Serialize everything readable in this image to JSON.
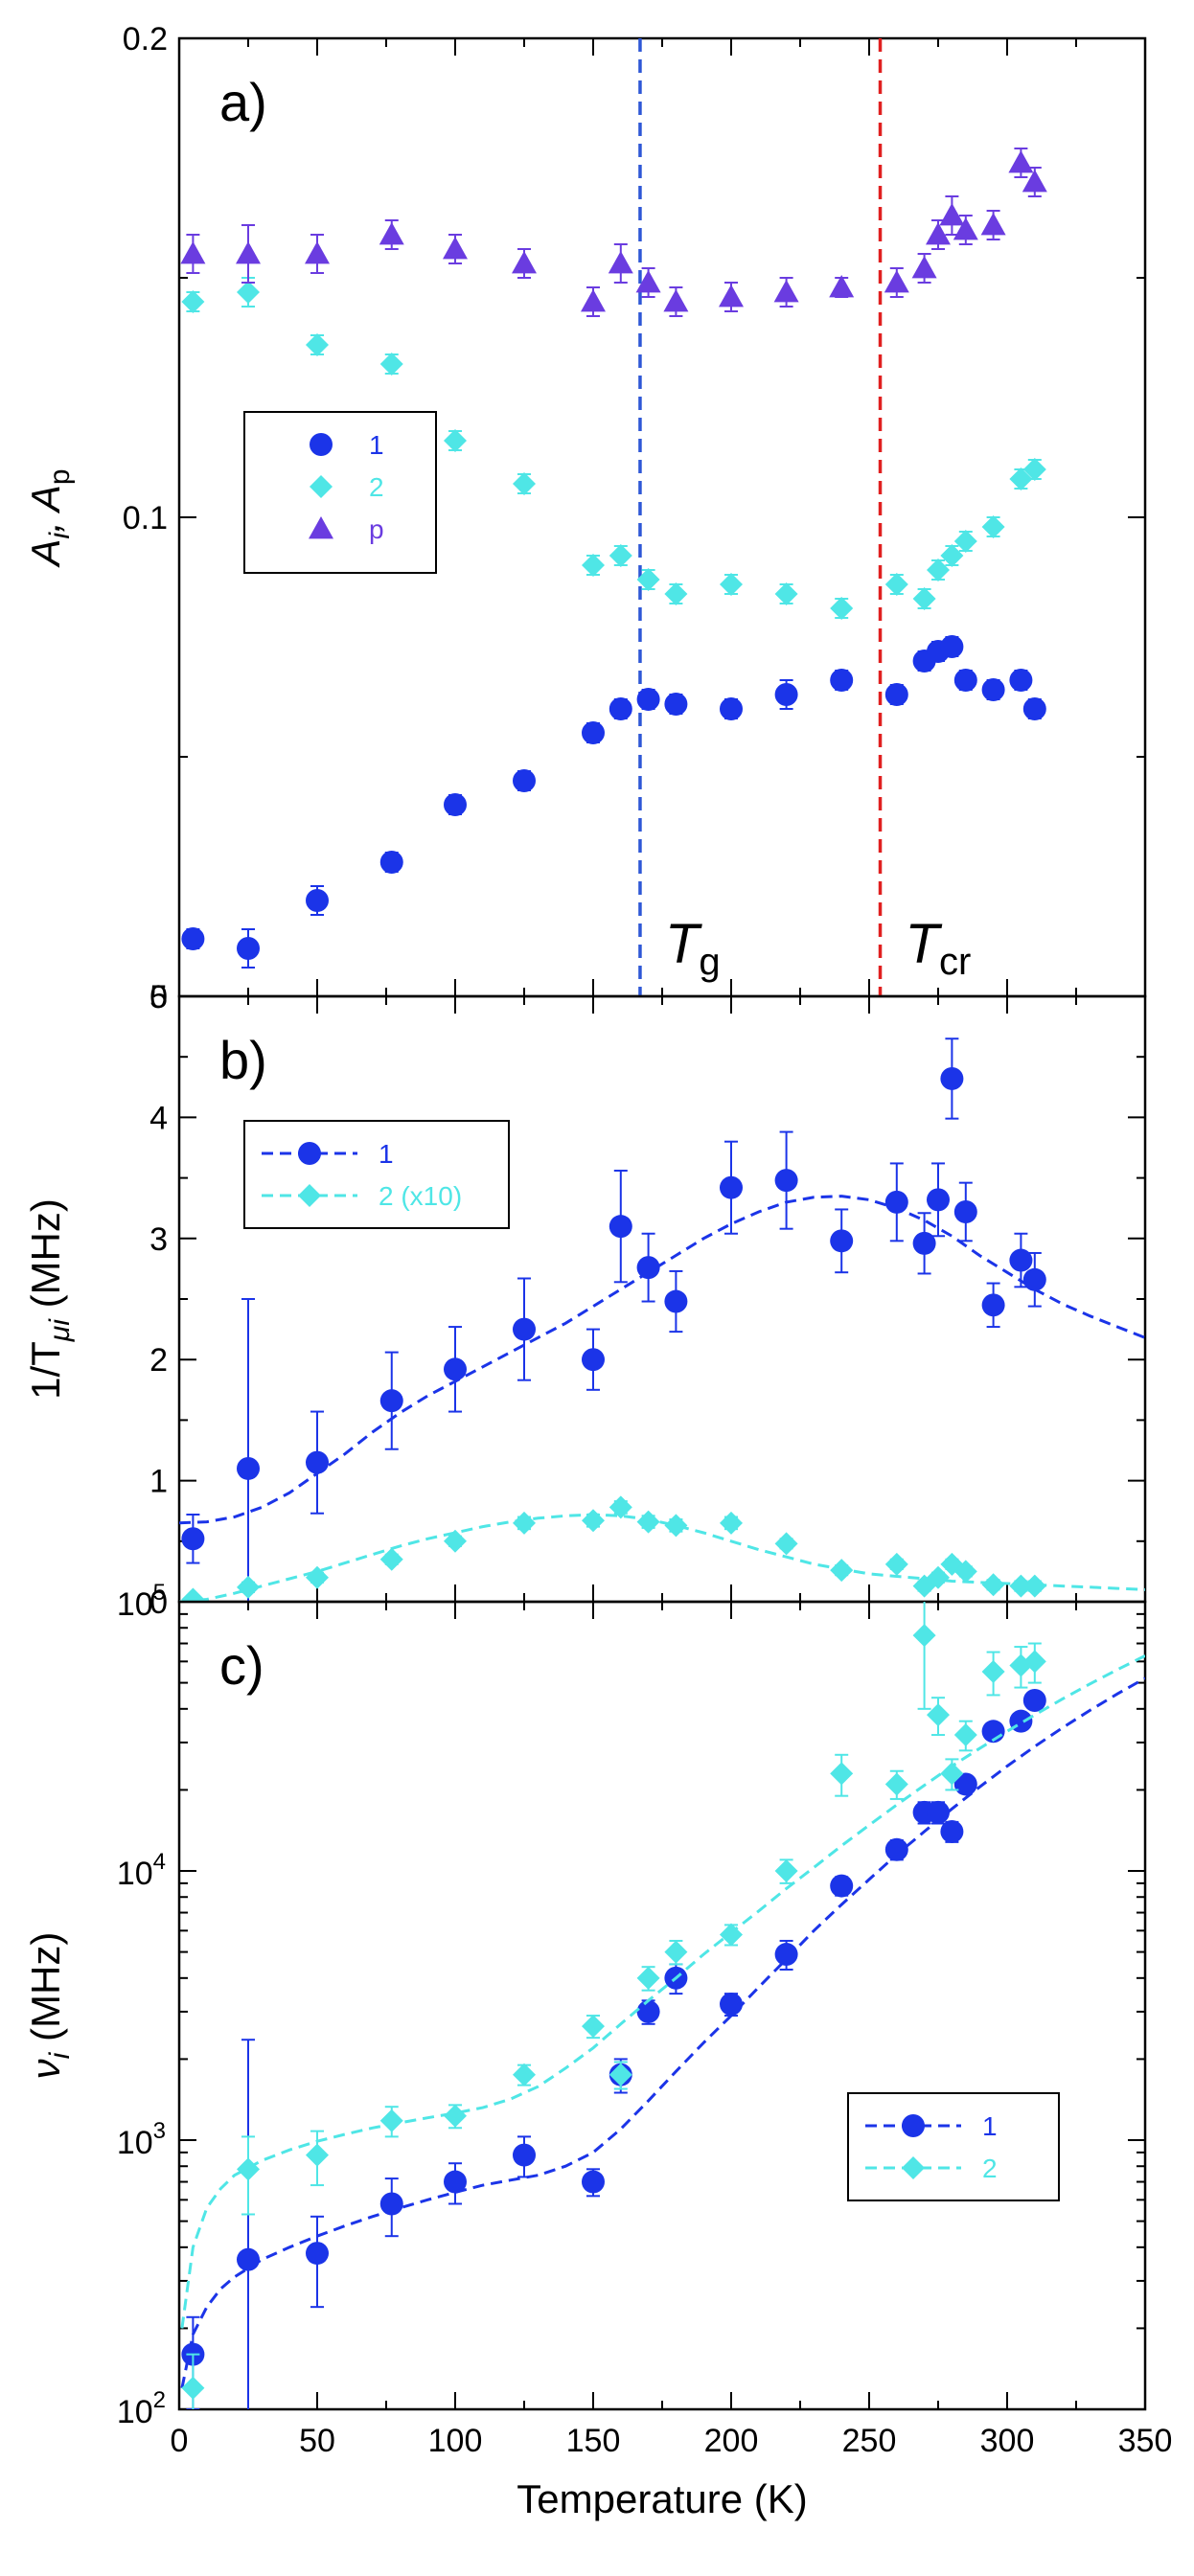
{
  "colors": {
    "s1": "#1b34e8",
    "s2": "#4fe6e6",
    "sp": "#6a3ce0",
    "tg_line": "#2e57d6",
    "tcr_line": "#e02020",
    "frame": "#000000"
  },
  "xaxis": {
    "label": "Temperature (K)",
    "range": [
      0,
      350
    ],
    "ticks": [
      0,
      50,
      100,
      150,
      200,
      250,
      300,
      350
    ]
  },
  "chart_data": [
    {
      "type": "scatter",
      "label": "a)",
      "ylabel_main": "A",
      "ylabel_sub_i": "i",
      "ylabel_mid": ", A",
      "ylabel_sub_p": "p",
      "ylim": [
        0,
        0.2
      ],
      "yticks": [
        {
          "v": 0,
          "t": "0"
        },
        {
          "v": 0.1,
          "t": "0.1"
        },
        {
          "v": 0.2,
          "t": "0.2"
        }
      ],
      "legend": {
        "placement": "left-middle",
        "entries": [
          "1",
          "2",
          "p"
        ]
      },
      "vlines": [
        {
          "x": 167,
          "label_main": "T",
          "label_sub": "g",
          "color_key": "tg_line"
        },
        {
          "x": 254,
          "label_main": "T",
          "label_sub": "cr",
          "color_key": "tcr_line"
        }
      ],
      "series": [
        {
          "name": "1",
          "marker": "circle",
          "color_key": "s1",
          "line": false,
          "x": [
            5,
            25,
            50,
            77,
            100,
            125,
            150,
            160,
            170,
            180,
            200,
            220,
            240,
            260,
            270,
            275,
            280,
            285,
            295,
            305,
            310
          ],
          "y": [
            0.012,
            0.01,
            0.02,
            0.028,
            0.04,
            0.045,
            0.055,
            0.06,
            0.062,
            0.061,
            0.06,
            0.063,
            0.066,
            0.063,
            0.07,
            0.072,
            0.073,
            0.066,
            0.064,
            0.066,
            0.06
          ],
          "err": [
            0.002,
            0.004,
            0.003,
            0.002,
            0.002,
            0.002,
            0.002,
            0.002,
            0.002,
            0.002,
            0.002,
            0.003,
            0.002,
            0.002,
            0.002,
            0.002,
            0.002,
            0.002,
            0.002,
            0.002,
            0.002
          ]
        },
        {
          "name": "2",
          "marker": "diamond",
          "color_key": "s2",
          "line": false,
          "x": [
            5,
            25,
            50,
            77,
            100,
            125,
            150,
            160,
            170,
            180,
            200,
            220,
            240,
            260,
            270,
            275,
            280,
            285,
            295,
            305,
            310
          ],
          "y": [
            0.145,
            0.147,
            0.136,
            0.132,
            0.116,
            0.107,
            0.09,
            0.092,
            0.087,
            0.084,
            0.086,
            0.084,
            0.081,
            0.086,
            0.083,
            0.089,
            0.092,
            0.095,
            0.098,
            0.108,
            0.11
          ],
          "err": [
            0.002,
            0.003,
            0.002,
            0.002,
            0.002,
            0.002,
            0.002,
            0.002,
            0.002,
            0.002,
            0.002,
            0.002,
            0.002,
            0.002,
            0.002,
            0.002,
            0.002,
            0.002,
            0.002,
            0.002,
            0.002
          ]
        },
        {
          "name": "p",
          "marker": "triangle",
          "color_key": "sp",
          "line": false,
          "x": [
            5,
            25,
            50,
            77,
            100,
            125,
            150,
            160,
            170,
            180,
            200,
            220,
            240,
            260,
            270,
            275,
            280,
            285,
            295,
            305,
            310
          ],
          "y": [
            0.155,
            0.155,
            0.155,
            0.159,
            0.156,
            0.153,
            0.145,
            0.153,
            0.149,
            0.145,
            0.146,
            0.147,
            0.148,
            0.149,
            0.152,
            0.159,
            0.163,
            0.16,
            0.161,
            0.174,
            0.17
          ],
          "err": [
            0.004,
            0.006,
            0.004,
            0.003,
            0.003,
            0.003,
            0.003,
            0.004,
            0.003,
            0.003,
            0.003,
            0.003,
            0.002,
            0.003,
            0.003,
            0.003,
            0.004,
            0.003,
            0.003,
            0.003,
            0.003
          ]
        }
      ]
    },
    {
      "type": "scatter",
      "label": "b)",
      "ylabel_main": "1/T",
      "ylabel_sub": "μi",
      "ylabel_unit": " (MHz)",
      "ylim": [
        0,
        5
      ],
      "yticks": [
        {
          "v": 0,
          "t": "0"
        },
        {
          "v": 1,
          "t": "1"
        },
        {
          "v": 2,
          "t": "2"
        },
        {
          "v": 3,
          "t": "3"
        },
        {
          "v": 4,
          "t": "4"
        },
        {
          "v": 5,
          "t": "5"
        }
      ],
      "legend": {
        "placement": "top-left",
        "entries": [
          "1",
          "2 (x10)"
        ]
      },
      "series": [
        {
          "name": "1",
          "marker": "circle",
          "color_key": "s1",
          "line": true,
          "x": [
            5,
            25,
            50,
            77,
            100,
            125,
            150,
            160,
            170,
            180,
            200,
            220,
            240,
            260,
            270,
            275,
            280,
            285,
            295,
            305,
            310
          ],
          "y": [
            0.52,
            1.1,
            1.15,
            1.66,
            1.92,
            2.25,
            2.0,
            3.1,
            2.76,
            2.48,
            3.42,
            3.48,
            2.98,
            3.3,
            2.96,
            3.32,
            4.32,
            3.22,
            2.45,
            2.82,
            2.66
          ],
          "err": [
            0.2,
            1.4,
            0.42,
            0.4,
            0.35,
            0.42,
            0.25,
            0.46,
            0.28,
            0.25,
            0.38,
            0.4,
            0.26,
            0.32,
            0.25,
            0.3,
            0.33,
            0.24,
            0.18,
            0.22,
            0.22
          ],
          "fit_x": [
            0,
            10,
            20,
            30,
            40,
            50,
            60,
            70,
            80,
            90,
            100,
            110,
            120,
            130,
            140,
            150,
            160,
            170,
            180,
            190,
            200,
            210,
            220,
            230,
            240,
            250,
            260,
            270,
            280,
            290,
            300,
            310,
            320,
            330,
            340,
            350
          ],
          "fit_y": [
            0.65,
            0.66,
            0.7,
            0.78,
            0.9,
            1.06,
            1.22,
            1.4,
            1.56,
            1.7,
            1.82,
            1.94,
            2.06,
            2.18,
            2.3,
            2.44,
            2.58,
            2.72,
            2.86,
            3.0,
            3.12,
            3.22,
            3.3,
            3.34,
            3.35,
            3.32,
            3.25,
            3.15,
            3.02,
            2.86,
            2.72,
            2.58,
            2.46,
            2.36,
            2.27,
            2.18
          ]
        },
        {
          "name": "2 (x10)",
          "marker": "diamond",
          "color_key": "s2",
          "line": true,
          "x": [
            5,
            25,
            50,
            77,
            100,
            125,
            150,
            160,
            170,
            180,
            200,
            220,
            240,
            260,
            270,
            275,
            280,
            285,
            295,
            305,
            310
          ],
          "y": [
            0.02,
            0.12,
            0.2,
            0.35,
            0.5,
            0.65,
            0.67,
            0.78,
            0.66,
            0.63,
            0.65,
            0.48,
            0.26,
            0.31,
            0.13,
            0.2,
            0.31,
            0.25,
            0.14,
            0.13,
            0.13
          ],
          "err": [
            0.03,
            0.04,
            0.04,
            0.04,
            0.04,
            0.05,
            0.05,
            0.05,
            0.05,
            0.05,
            0.05,
            0.04,
            0.04,
            0.04,
            0.04,
            0.04,
            0.04,
            0.04,
            0.04,
            0.04,
            0.04
          ],
          "fit_x": [
            0,
            10,
            20,
            30,
            40,
            50,
            60,
            70,
            80,
            90,
            100,
            110,
            120,
            130,
            140,
            150,
            160,
            170,
            180,
            190,
            200,
            210,
            220,
            230,
            240,
            250,
            260,
            270,
            280,
            290,
            300,
            310,
            320,
            330,
            340,
            350
          ],
          "fit_y": [
            0.0,
            0.02,
            0.07,
            0.13,
            0.19,
            0.25,
            0.32,
            0.39,
            0.46,
            0.52,
            0.57,
            0.62,
            0.66,
            0.69,
            0.71,
            0.72,
            0.71,
            0.68,
            0.63,
            0.57,
            0.5,
            0.43,
            0.37,
            0.31,
            0.27,
            0.23,
            0.21,
            0.19,
            0.17,
            0.16,
            0.15,
            0.14,
            0.13,
            0.12,
            0.11,
            0.1
          ]
        }
      ]
    },
    {
      "type": "scatter",
      "label": "c)",
      "ylabel_main": "ν",
      "ylabel_sub": "i",
      "ylabel_unit": " (MHz)",
      "yscale": "log",
      "ylim": [
        100,
        100000
      ],
      "yticks": [
        {
          "v": 100,
          "base": "10",
          "exp": "2"
        },
        {
          "v": 1000,
          "base": "10",
          "exp": "3"
        },
        {
          "v": 10000,
          "base": "10",
          "exp": "4"
        },
        {
          "v": 100000,
          "base": "10",
          "exp": "5"
        }
      ],
      "legend": {
        "placement": "bottom-right",
        "entries": [
          "1",
          "2"
        ]
      },
      "series": [
        {
          "name": "1",
          "marker": "circle",
          "color_key": "s1",
          "line": true,
          "x": [
            5,
            25,
            50,
            77,
            100,
            125,
            150,
            160,
            170,
            180,
            200,
            220,
            240,
            260,
            270,
            275,
            280,
            285,
            295,
            305,
            310
          ],
          "y": [
            160,
            360,
            380,
            580,
            700,
            880,
            700,
            1750,
            3000,
            4000,
            3200,
            4900,
            8800,
            12000,
            16500,
            16500,
            14000,
            21000,
            33000,
            36000,
            43000
          ],
          "err_lo": [
            60,
            300,
            140,
            140,
            120,
            150,
            80,
            250,
            300,
            500,
            300,
            600,
            700,
            1000,
            1500,
            1500,
            1200,
            1500,
            2000,
            2500,
            3000
          ],
          "err_hi": [
            60,
            2000,
            140,
            140,
            120,
            150,
            80,
            250,
            300,
            500,
            300,
            600,
            700,
            1000,
            1500,
            1500,
            1200,
            1500,
            2000,
            2500,
            3000
          ],
          "fit_x": [
            1,
            5,
            10,
            15,
            20,
            30,
            40,
            50,
            60,
            70,
            80,
            90,
            100,
            110,
            120,
            130,
            140,
            150,
            160,
            170,
            180,
            190,
            200,
            210,
            220,
            230,
            240,
            250,
            260,
            270,
            280,
            290,
            300,
            310,
            320,
            330,
            340,
            350
          ],
          "fit_y": [
            120,
            190,
            240,
            280,
            310,
            360,
            400,
            440,
            480,
            520,
            560,
            600,
            640,
            680,
            710,
            740,
            800,
            900,
            1100,
            1400,
            1800,
            2300,
            2900,
            3700,
            4700,
            6000,
            7500,
            9300,
            11500,
            14000,
            17000,
            20500,
            24500,
            29000,
            34000,
            39500,
            45500,
            52000
          ]
        },
        {
          "name": "2",
          "marker": "diamond",
          "color_key": "s2",
          "line": true,
          "x": [
            5,
            25,
            50,
            77,
            100,
            125,
            150,
            160,
            170,
            180,
            200,
            220,
            240,
            260,
            270,
            275,
            280,
            285,
            295,
            305,
            310
          ],
          "y": [
            120,
            780,
            880,
            1180,
            1230,
            1750,
            2650,
            1750,
            4000,
            5000,
            5800,
            10000,
            23000,
            21000,
            75000,
            38000,
            23000,
            32000,
            55000,
            58000,
            60000
          ],
          "err_lo": [
            40,
            250,
            200,
            150,
            120,
            150,
            250,
            200,
            400,
            500,
            500,
            1000,
            4000,
            2500,
            35000,
            6000,
            3000,
            4000,
            10000,
            10000,
            10000
          ],
          "err_hi": [
            40,
            250,
            200,
            150,
            120,
            150,
            250,
            200,
            400,
            500,
            500,
            1000,
            4000,
            2500,
            35000,
            6000,
            3000,
            4000,
            10000,
            10000,
            10000
          ],
          "fit_x": [
            1,
            5,
            10,
            15,
            20,
            30,
            40,
            50,
            60,
            70,
            80,
            90,
            100,
            110,
            120,
            130,
            140,
            150,
            160,
            170,
            180,
            190,
            200,
            210,
            220,
            230,
            240,
            250,
            260,
            270,
            280,
            290,
            300,
            310,
            320,
            330,
            340,
            350
          ],
          "fit_y": [
            200,
            400,
            560,
            660,
            740,
            840,
            920,
            990,
            1050,
            1110,
            1160,
            1210,
            1260,
            1320,
            1420,
            1580,
            1850,
            2200,
            2700,
            3300,
            4000,
            4900,
            5900,
            7100,
            8600,
            10300,
            12400,
            14800,
            17600,
            20800,
            24500,
            28500,
            33000,
            38000,
            43500,
            49500,
            56000,
            63000
          ]
        }
      ]
    }
  ]
}
